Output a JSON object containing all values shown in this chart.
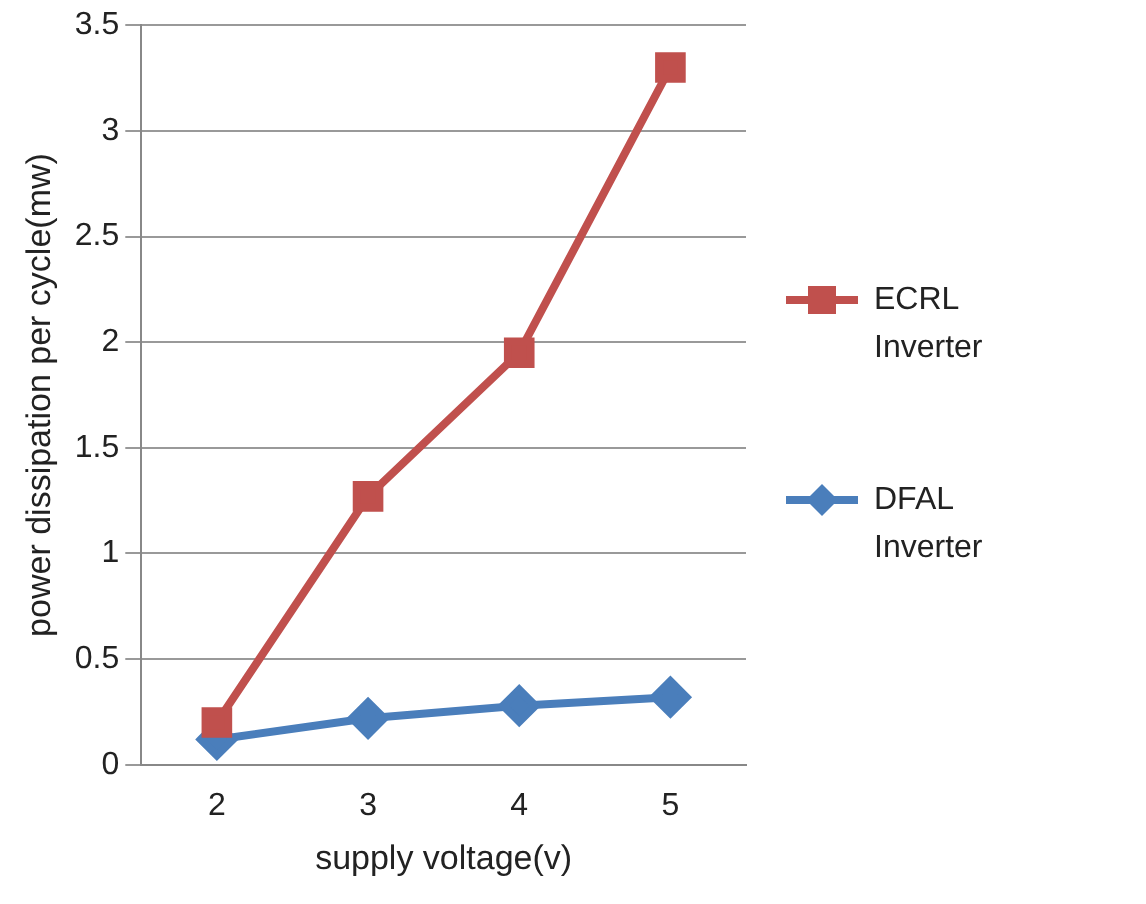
{
  "chart_data": {
    "type": "line",
    "xlabel": "supply voltage(v)",
    "ylabel": "power dissipation per cycle(mw)",
    "categories": [
      "2",
      "3",
      "4",
      "5"
    ],
    "series": [
      {
        "name": "ECRL Inverter",
        "color": "#c0504d",
        "marker": "square",
        "values": [
          0.2,
          1.27,
          1.95,
          3.3
        ]
      },
      {
        "name": "DFAL Inverter",
        "color": "#4a7ebb",
        "marker": "diamond",
        "values": [
          0.12,
          0.22,
          0.28,
          0.32
        ]
      }
    ],
    "ylim": [
      0,
      3.5
    ],
    "yticks": [
      0,
      0.5,
      1,
      1.5,
      2,
      2.5,
      3,
      3.5
    ],
    "grid": "y",
    "legend": "right"
  }
}
